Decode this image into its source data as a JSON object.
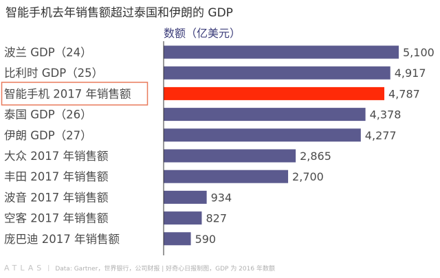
{
  "title": "智能手机去年销售额超过泰国和伊朗的 GDP",
  "footer": {
    "logo": "ATLAS",
    "source": "Data: Gartner，世界银行，公司财报 | 好奇心日报制图，GDP 为 2016 年数额"
  },
  "colors": {
    "bar": "#5b5a8e",
    "highlight": "#ff2a08",
    "highlight_border": "#e8795a",
    "axis": "#333333",
    "label": "#4a4a4a"
  },
  "chart_data": {
    "type": "bar",
    "orientation": "horizontal",
    "subtitle": "数额（亿美元）",
    "categories": [
      "波兰 GDP（24）",
      "比利时 GDP（25）",
      "智能手机 2017 年销售额",
      "泰国 GDP（26）",
      "伊朗 GDP（27）",
      "大众 2017 年销售额",
      "丰田 2017 年销售额",
      "波音 2017 年销售额",
      "空客 2017 年销售额",
      "庞巴迪 2017 年销售额"
    ],
    "values": [
      5100,
      4917,
      4787,
      4378,
      4277,
      2865,
      2700,
      934,
      827,
      590
    ],
    "value_labels": [
      "5,100",
      "4,917",
      "4,787",
      "4,378",
      "4,277",
      "2,865",
      "2,700",
      "934",
      "827",
      "590"
    ],
    "highlight_index": 2,
    "xlim": [
      0,
      5100
    ]
  }
}
